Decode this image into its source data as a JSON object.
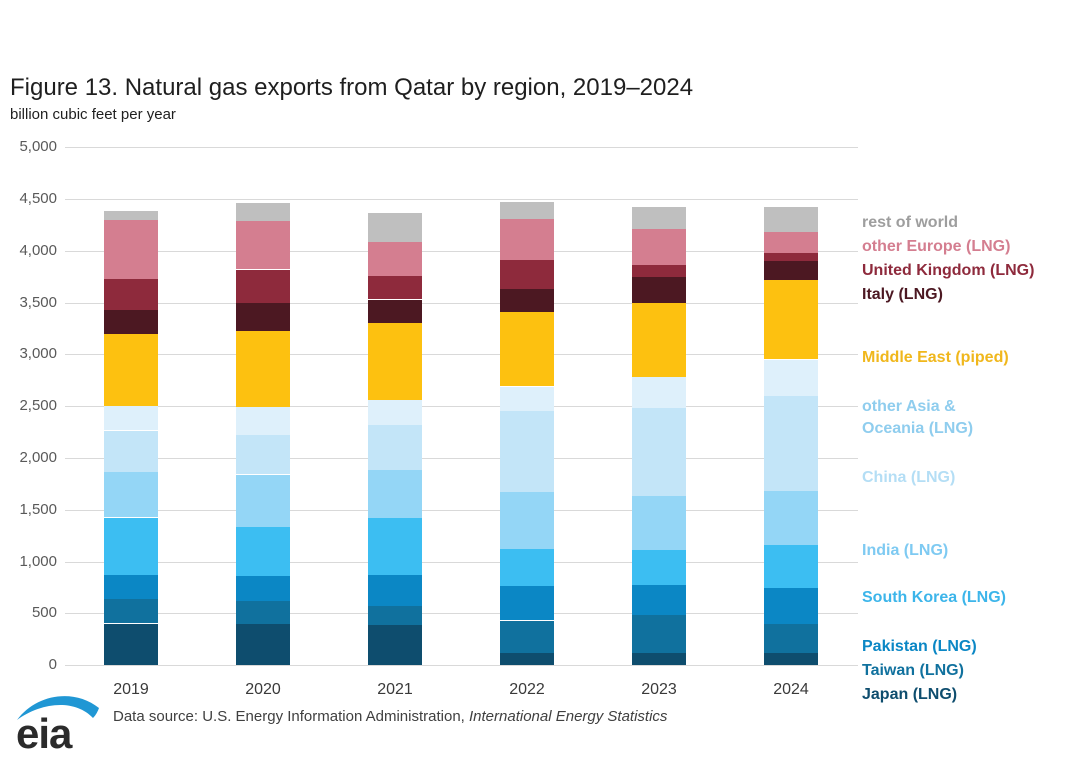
{
  "page": {
    "title": "Figure 13. Natural gas exports from Qatar by region, 2019–2024",
    "subtitle": "billion cubic feet per year",
    "footer_prefix": "Data source: U.S. Energy Information Administration, ",
    "footer_italic": "International Energy Statistics",
    "logo_text": "eia"
  },
  "chart_data": {
    "type": "bar",
    "stacked": true,
    "title": "Figure 13. Natural gas exports from Qatar by region, 2019–2024",
    "ylabel": "billion cubic feet per year",
    "categories": [
      "2019",
      "2020",
      "2021",
      "2022",
      "2023",
      "2024"
    ],
    "ylim": [
      0,
      5000
    ],
    "ytick_interval": 500,
    "ytick_labels": [
      "0",
      "500",
      "1,000",
      "1,500",
      "2,000",
      "2,500",
      "3,000",
      "3,500",
      "4,000",
      "4,500",
      "5,000"
    ],
    "grid": true,
    "legend_position": "right",
    "series": [
      {
        "name": "Japan (LNG)",
        "color": "#0e4d6e",
        "values": [
          400,
          400,
          390,
          120,
          120,
          120
        ]
      },
      {
        "name": "Taiwan (LNG)",
        "color": "#10719e",
        "values": [
          240,
          220,
          180,
          310,
          360,
          280
        ]
      },
      {
        "name": "Pakistan (LNG)",
        "color": "#0b87c5",
        "values": [
          230,
          240,
          300,
          330,
          290,
          340
        ]
      },
      {
        "name": "South Korea (LNG)",
        "color": "#3cbef2",
        "values": [
          555,
          470,
          550,
          360,
          340,
          420
        ]
      },
      {
        "name": "India (LNG)",
        "color": "#94d6f6",
        "values": [
          440,
          510,
          460,
          550,
          520,
          520
        ]
      },
      {
        "name": "China (LNG)",
        "color": "#c3e5f8",
        "values": [
          400,
          380,
          440,
          780,
          850,
          920
        ]
      },
      {
        "name": "other Asia & Oceania (LNG)",
        "color": "#def0fb",
        "values": [
          240,
          270,
          240,
          240,
          300,
          350
        ]
      },
      {
        "name": "Middle East (piped)",
        "color": "#fdc110",
        "values": [
          690,
          740,
          740,
          720,
          720,
          770
        ]
      },
      {
        "name": "Italy (LNG)",
        "color": "#4c1822",
        "values": [
          230,
          270,
          230,
          220,
          250,
          180
        ]
      },
      {
        "name": "United Kingdom (LNG)",
        "color": "#8e2a3c",
        "values": [
          305,
          320,
          230,
          280,
          110,
          80
        ]
      },
      {
        "name": "other Europe (LNG)",
        "color": "#d47e90",
        "values": [
          570,
          470,
          330,
          400,
          350,
          200
        ]
      },
      {
        "name": "rest of world",
        "color": "#bfbfbf",
        "values": [
          90,
          170,
          280,
          160,
          210,
          240
        ]
      }
    ],
    "totals": [
      4390,
      4460,
      4370,
      4470,
      4420,
      4420
    ],
    "legend_items": [
      {
        "label": "rest of world",
        "color": "#9e9e9e",
        "y": 212
      },
      {
        "label": "other Europe (LNG)",
        "color": "#d47e90",
        "y": 236
      },
      {
        "label": "United Kingdom (LNG)",
        "color": "#8e2a3c",
        "y": 260
      },
      {
        "label": "Italy (LNG)",
        "color": "#4c1822",
        "y": 284
      },
      {
        "label": "Middle East (piped)",
        "color": "#f0b71c",
        "y": 347
      },
      {
        "label": "other Asia &\n Oceania (LNG)",
        "color": "#8fcdee",
        "y": 396
      },
      {
        "label": "China (LNG)",
        "color": "#b4def5",
        "y": 467
      },
      {
        "label": "India (LNG)",
        "color": "#7ecaf2",
        "y": 540
      },
      {
        "label": "South Korea (LNG)",
        "color": "#3cb5ea",
        "y": 587
      },
      {
        "label": "Pakistan (LNG)",
        "color": "#0b87c5",
        "y": 636
      },
      {
        "label": "Taiwan (LNG)",
        "color": "#10719e",
        "y": 660
      },
      {
        "label": "Japan (LNG)",
        "color": "#0e4d6e",
        "y": 684
      }
    ]
  }
}
